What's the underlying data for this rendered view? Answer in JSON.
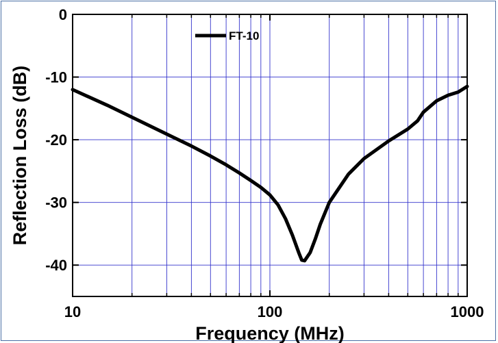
{
  "chart_data": {
    "type": "line",
    "xlabel": "Frequency (MHz)",
    "ylabel": "Reflection Loss (dB)",
    "xscale": "log",
    "xlim": [
      10,
      1000
    ],
    "ylim": [
      -45,
      0
    ],
    "xticks": [
      10,
      100,
      1000
    ],
    "xtick_labels": [
      "10",
      "100",
      "1000"
    ],
    "yticks": [
      0,
      -10,
      -20,
      -30,
      -40
    ],
    "ytick_labels": [
      "0",
      "-10",
      "-20",
      "-30",
      "-40"
    ],
    "grid": true,
    "grid_color": "#3333cc",
    "legend_position": "top-left",
    "series": [
      {
        "name": "FT-10",
        "color": "#000000",
        "x": [
          10,
          15,
          20,
          30,
          40,
          50,
          60,
          70,
          80,
          90,
          100,
          110,
          120,
          130,
          140,
          145,
          150,
          160,
          170,
          180,
          200,
          250,
          300,
          400,
          500,
          560,
          600,
          700,
          800,
          900,
          1000
        ],
        "y": [
          -12.0,
          -14.5,
          -16.4,
          -19.1,
          -21.0,
          -22.6,
          -24.0,
          -25.3,
          -26.5,
          -27.6,
          -28.8,
          -30.4,
          -32.6,
          -35.2,
          -38.0,
          -39.2,
          -39.3,
          -38.0,
          -35.8,
          -33.5,
          -30.0,
          -25.5,
          -23.0,
          -20.2,
          -18.3,
          -17.0,
          -15.6,
          -13.8,
          -12.9,
          -12.4,
          -11.5
        ]
      }
    ]
  }
}
